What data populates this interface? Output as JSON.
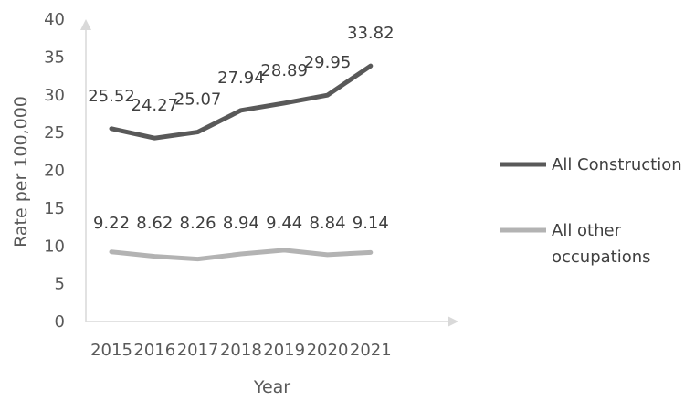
{
  "chart_data": {
    "type": "line",
    "title": "",
    "xlabel": "Year",
    "ylabel": "Rate per 100,000",
    "categories": [
      "2015",
      "2016",
      "2017",
      "2018",
      "2019",
      "2020",
      "2021"
    ],
    "ylim": [
      0,
      40
    ],
    "yticks": [
      "0",
      "5",
      "10",
      "15",
      "20",
      "25",
      "30",
      "35",
      "40"
    ],
    "grid": false,
    "legend_position": "right",
    "series": [
      {
        "name": "All Construction",
        "color": "#595959",
        "values": [
          25.52,
          24.27,
          25.07,
          27.94,
          28.89,
          29.95,
          33.82
        ],
        "labels": [
          "25.52",
          "24.27",
          "25.07",
          "27.94",
          "28.89",
          "29.95",
          "33.82"
        ]
      },
      {
        "name": "All other occupations",
        "name_lines": [
          "All other",
          "occupations"
        ],
        "color": "#b3b3b3",
        "values": [
          9.22,
          8.62,
          8.26,
          8.94,
          9.44,
          8.84,
          9.14
        ],
        "labels": [
          "9.22",
          "8.62",
          "8.26",
          "8.94",
          "9.44",
          "8.84",
          "9.14"
        ]
      }
    ]
  }
}
